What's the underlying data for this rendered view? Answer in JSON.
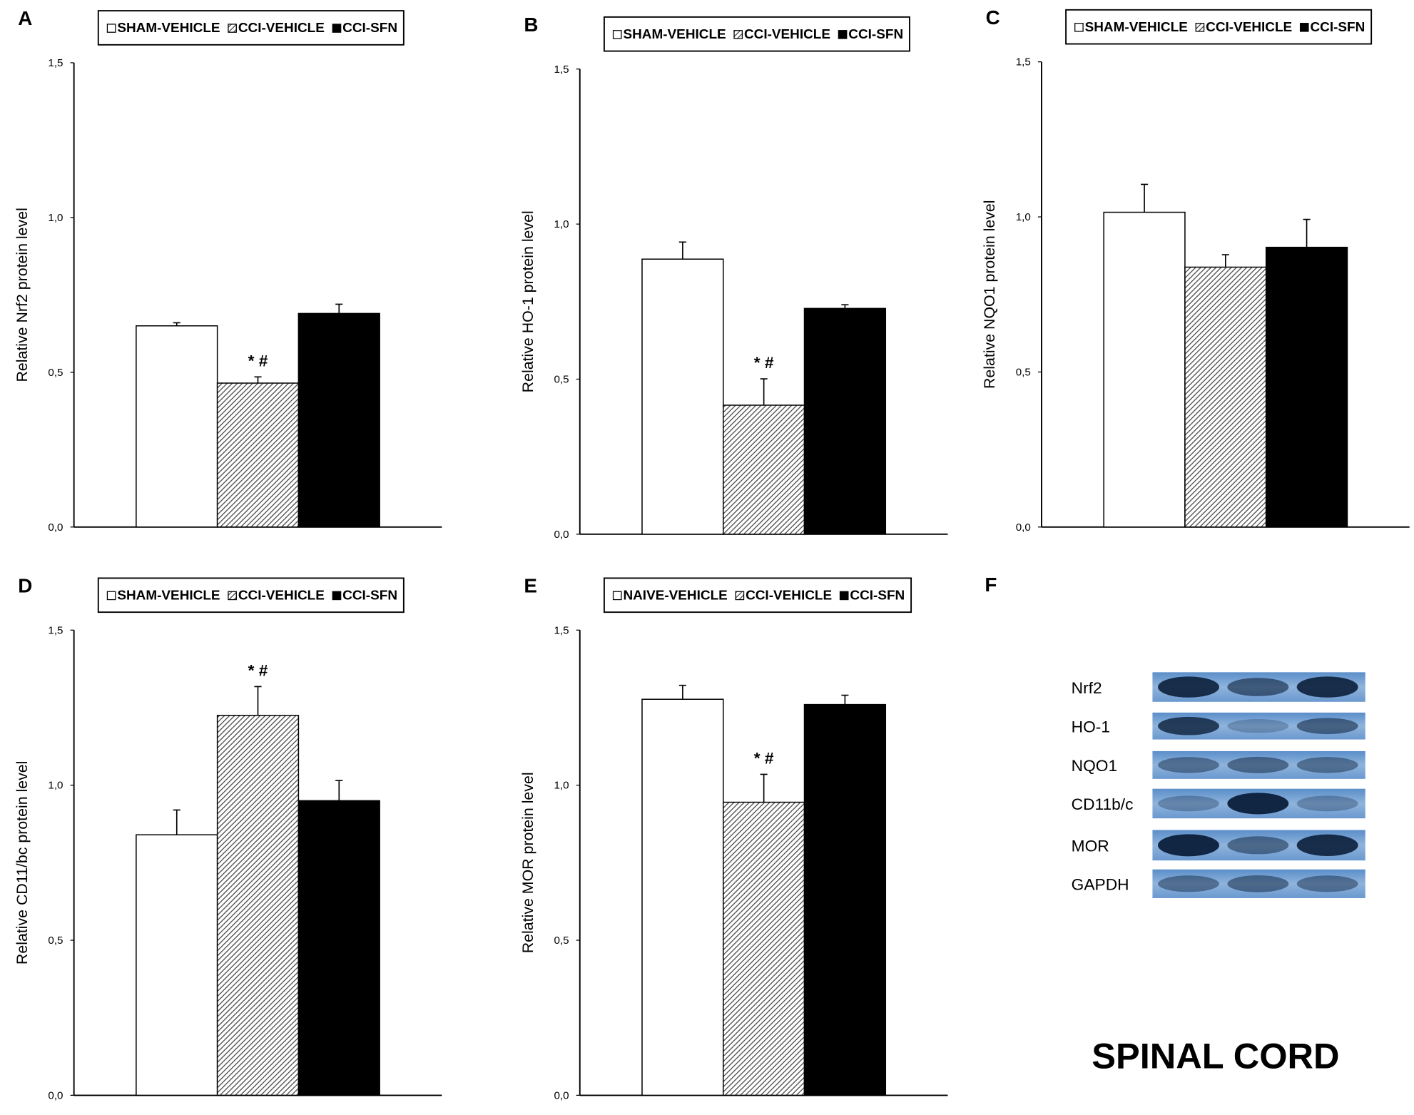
{
  "chart_data": [
    {
      "type": "bar",
      "panel": "A",
      "y_label": "Relative Nrf2 protein level",
      "ylim": [
        0,
        1.5
      ],
      "yticks": [
        {
          "value": 0,
          "label": "0,0"
        },
        {
          "value": 0.5,
          "label": "0,5"
        },
        {
          "value": 1,
          "label": "1,0"
        },
        {
          "value": 1.5,
          "label": "1,5"
        }
      ],
      "series": [
        {
          "name": "SHAM-VEHICLE",
          "color": "#ffffff",
          "values": [
            0.65
          ],
          "errors": [
            0.01
          ]
        },
        {
          "name": "CCI-VEHICLE",
          "color": "#bbbbbb",
          "pattern": "hatch",
          "values": [
            0.465
          ],
          "errors": [
            0.02
          ],
          "annotation": "* #"
        },
        {
          "name": "CCI-SFN",
          "color": "#000000",
          "values": [
            0.69
          ],
          "errors": [
            0.03
          ]
        }
      ]
    },
    {
      "type": "bar",
      "panel": "B",
      "y_label": "Relative HO-1 protein level",
      "ylim": [
        0,
        1.5
      ],
      "yticks": [
        {
          "value": 0,
          "label": "0,0"
        },
        {
          "value": 0.5,
          "label": "0,5"
        },
        {
          "value": 1,
          "label": "1,0"
        },
        {
          "value": 1.5,
          "label": "1,5"
        }
      ],
      "series": [
        {
          "name": "SHAM-VEHICLE",
          "color": "#ffffff",
          "values": [
            0.887
          ],
          "errors": [
            0.055
          ]
        },
        {
          "name": "CCI-VEHICLE",
          "color": "#bbbbbb",
          "pattern": "hatch",
          "values": [
            0.416
          ],
          "errors": [
            0.085
          ],
          "annotation": "* #"
        },
        {
          "name": "CCI-SFN",
          "color": "#000000",
          "values": [
            0.728
          ],
          "errors": [
            0.012
          ]
        }
      ]
    },
    {
      "type": "bar",
      "panel": "C",
      "y_label": "Relative NQO1 protein level",
      "ylim": [
        0,
        1.5
      ],
      "yticks": [
        {
          "value": 0,
          "label": "0,0"
        },
        {
          "value": 0.5,
          "label": "0,5"
        },
        {
          "value": 1,
          "label": "1,0"
        },
        {
          "value": 1.5,
          "label": "1,5"
        }
      ],
      "series": [
        {
          "name": "SHAM-VEHICLE",
          "color": "#ffffff",
          "values": [
            1.015
          ],
          "errors": [
            0.09
          ]
        },
        {
          "name": "CCI-VEHICLE",
          "color": "#bbbbbb",
          "pattern": "hatch",
          "values": [
            0.838
          ],
          "errors": [
            0.04
          ]
        },
        {
          "name": "CCI-SFN",
          "color": "#000000",
          "values": [
            0.902
          ],
          "errors": [
            0.09
          ]
        }
      ]
    },
    {
      "type": "bar",
      "panel": "D",
      "y_label": "Relative CD11/bc protein level",
      "ylim": [
        0,
        1.5
      ],
      "yticks": [
        {
          "value": 0,
          "label": "0,0"
        },
        {
          "value": 0.5,
          "label": "0,5"
        },
        {
          "value": 1,
          "label": "1,0"
        },
        {
          "value": 1.5,
          "label": "1,5"
        }
      ],
      "series": [
        {
          "name": "SHAM-VEHICLE",
          "color": "#ffffff",
          "values": [
            0.84
          ],
          "errors": [
            0.08
          ]
        },
        {
          "name": "CCI-VEHICLE",
          "color": "#bbbbbb",
          "pattern": "hatch",
          "values": [
            1.225
          ],
          "errors": [
            0.093
          ],
          "annotation": "* #"
        },
        {
          "name": "CCI-SFN",
          "color": "#000000",
          "values": [
            0.95
          ],
          "errors": [
            0.065
          ]
        }
      ]
    },
    {
      "type": "bar",
      "panel": "E",
      "y_label": "Relative MOR protein level",
      "ylim": [
        0,
        1.5
      ],
      "yticks": [
        {
          "value": 0,
          "label": "0,0"
        },
        {
          "value": 0.5,
          "label": "0,5"
        },
        {
          "value": 1,
          "label": "1,0"
        },
        {
          "value": 1.5,
          "label": "1,5"
        }
      ],
      "series": [
        {
          "name": "NAIVE-VEHICLE",
          "color": "#ffffff",
          "values": [
            1.277
          ],
          "errors": [
            0.045
          ]
        },
        {
          "name": "CCI-VEHICLE",
          "color": "#bbbbbb",
          "pattern": "hatch",
          "values": [
            0.945
          ],
          "errors": [
            0.09
          ],
          "annotation": "* #"
        },
        {
          "name": "CCI-SFN",
          "color": "#000000",
          "values": [
            1.26
          ],
          "errors": [
            0.03
          ]
        }
      ]
    }
  ],
  "blot": {
    "panel": "F",
    "bands": [
      "Nrf2",
      "HO-1",
      "NQO1",
      "CD11b/c",
      "MOR",
      "GAPDH"
    ],
    "title": "SPINAL CORD"
  }
}
